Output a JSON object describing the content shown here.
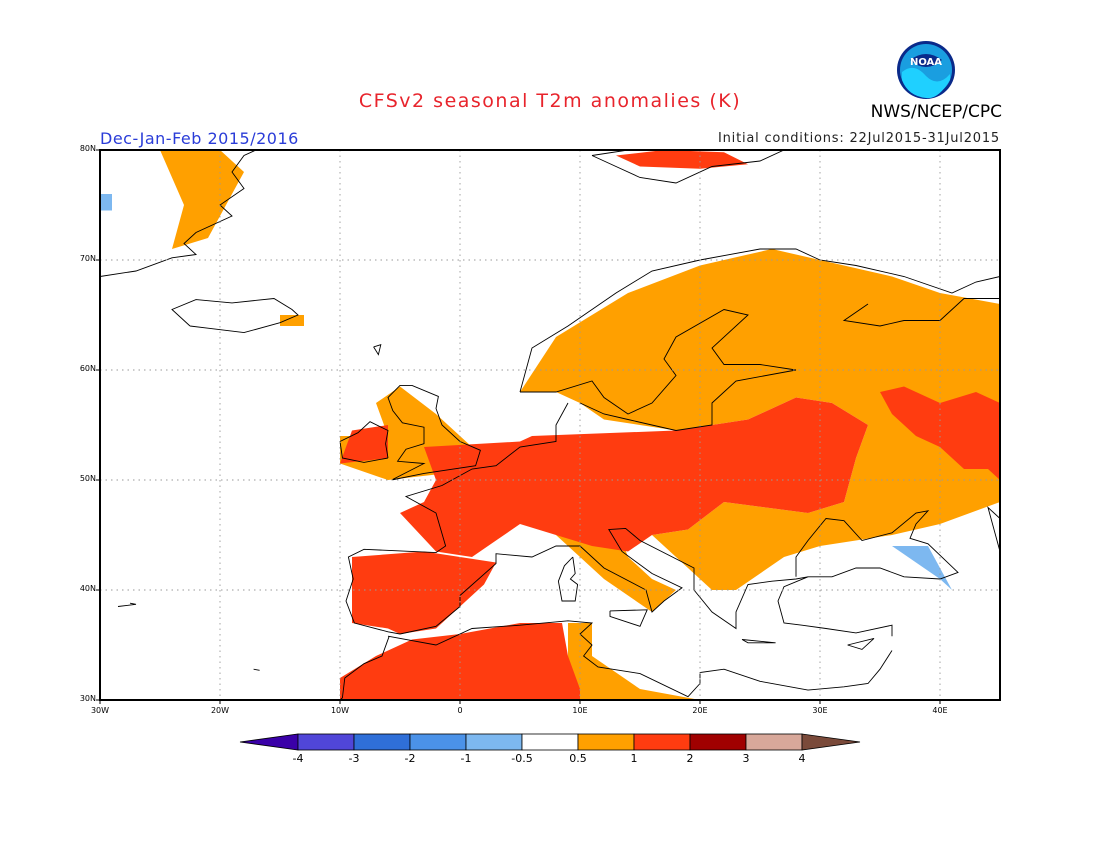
{
  "header": {
    "title": "CFSv2 seasonal T2m anomalies (K)",
    "season": "Dec-Jan-Feb 2015/2016",
    "initial_conditions": "Initial conditions: 22Jul2015-31Jul2015",
    "agency": "NWS/NCEP/CPC",
    "logo_text": "NOAA"
  },
  "map": {
    "projection": "lat-lon",
    "lon_range": [
      -30,
      45
    ],
    "lat_range": [
      30,
      80
    ],
    "grid": "dotted",
    "lat_labels": [
      {
        "value": 80,
        "text": "80N"
      },
      {
        "value": 70,
        "text": "70N"
      },
      {
        "value": 60,
        "text": "60N"
      },
      {
        "value": 50,
        "text": "50N"
      },
      {
        "value": 40,
        "text": "40N"
      },
      {
        "value": 30,
        "text": "30N"
      }
    ],
    "lon_labels": [
      {
        "value": -30,
        "text": "30W"
      },
      {
        "value": -20,
        "text": "20W"
      },
      {
        "value": -10,
        "text": "10W"
      },
      {
        "value": 0,
        "text": "0"
      },
      {
        "value": 10,
        "text": "10E"
      },
      {
        "value": 20,
        "text": "20E"
      },
      {
        "value": 30,
        "text": "30E"
      },
      {
        "value": 40,
        "text": "40E"
      }
    ],
    "anomaly_regions": [
      {
        "name": "western-central-europe",
        "category": "1 to 2",
        "poly": [
          [
            -3,
            53
          ],
          [
            5,
            53.5
          ],
          [
            6,
            54
          ],
          [
            18,
            54.5
          ],
          [
            24,
            55.5
          ],
          [
            28,
            57.5
          ],
          [
            31,
            57
          ],
          [
            34,
            55
          ],
          [
            33,
            52
          ],
          [
            32,
            48
          ],
          [
            29,
            47
          ],
          [
            22,
            48
          ],
          [
            19,
            45.5
          ],
          [
            16,
            45
          ],
          [
            14,
            43.5
          ],
          [
            11,
            44
          ],
          [
            8,
            45
          ],
          [
            5,
            46
          ],
          [
            3,
            44.5
          ],
          [
            1,
            43
          ],
          [
            -2,
            43.5
          ],
          [
            -5,
            47
          ],
          [
            -3,
            48
          ],
          [
            -2,
            50
          ]
        ]
      },
      {
        "name": "iberia",
        "category": "1 to 2",
        "poly": [
          [
            -9,
            43
          ],
          [
            -3,
            43.5
          ],
          [
            3,
            42.5
          ],
          [
            2,
            40.5
          ],
          [
            0,
            38.5
          ],
          [
            -2,
            36.5
          ],
          [
            -5,
            36
          ],
          [
            -6,
            36.5
          ],
          [
            -9,
            37
          ],
          [
            -9,
            41
          ]
        ]
      },
      {
        "name": "north-africa",
        "category": "1 to 2",
        "poly": [
          [
            -10,
            30
          ],
          [
            -10,
            32
          ],
          [
            -7,
            34
          ],
          [
            -4,
            35.5
          ],
          [
            0,
            36
          ],
          [
            5,
            37
          ],
          [
            8.5,
            37
          ],
          [
            9,
            34
          ],
          [
            10,
            31
          ],
          [
            10,
            30
          ]
        ]
      },
      {
        "name": "russia-east",
        "category": "1 to 2",
        "poly": [
          [
            35,
            58
          ],
          [
            37,
            58.5
          ],
          [
            40,
            57
          ],
          [
            43,
            58
          ],
          [
            45,
            57
          ],
          [
            45,
            50
          ],
          [
            44,
            51
          ],
          [
            42,
            51
          ],
          [
            40,
            53
          ],
          [
            38,
            54
          ],
          [
            36,
            56
          ]
        ]
      },
      {
        "name": "svalbard-north",
        "category": "1 to 2",
        "poly": [
          [
            13,
            79.5
          ],
          [
            17,
            80
          ],
          [
            22,
            79.8
          ],
          [
            24,
            78.7
          ],
          [
            20,
            78.3
          ],
          [
            15,
            78.5
          ]
        ]
      },
      {
        "name": "ireland-uk",
        "category": "1 to 2",
        "poly": [
          [
            -10,
            51.5
          ],
          [
            -6,
            52
          ],
          [
            -6,
            55
          ],
          [
            -9,
            54.5
          ]
        ]
      }
    ],
    "moderate_regions": [
      {
        "name": "scandinavia-finland-west-russia",
        "category": "0.5 to 1",
        "poly": [
          [
            5,
            58
          ],
          [
            8,
            63
          ],
          [
            14,
            67
          ],
          [
            20,
            69.5
          ],
          [
            26,
            71
          ],
          [
            30,
            70
          ],
          [
            36,
            68.5
          ],
          [
            40,
            67
          ],
          [
            45,
            66
          ],
          [
            45,
            48
          ],
          [
            40,
            46
          ],
          [
            36,
            45
          ],
          [
            30,
            44
          ],
          [
            27,
            43
          ],
          [
            23,
            40
          ],
          [
            21,
            40
          ],
          [
            19,
            42
          ],
          [
            16,
            45
          ],
          [
            19,
            45.5
          ],
          [
            22,
            48
          ],
          [
            29,
            47
          ],
          [
            32,
            48
          ],
          [
            33,
            52
          ],
          [
            34,
            55
          ],
          [
            31,
            57
          ],
          [
            28,
            57.5
          ],
          [
            24,
            55.5
          ],
          [
            18,
            54.5
          ],
          [
            12,
            55.5
          ],
          [
            10,
            57
          ],
          [
            8,
            58
          ]
        ]
      },
      {
        "name": "british-isles",
        "category": "0.5 to 1",
        "poly": [
          [
            -6,
            50
          ],
          [
            2,
            51
          ],
          [
            1,
            53
          ],
          [
            -2,
            56
          ],
          [
            -5,
            58.5
          ],
          [
            -7,
            57
          ],
          [
            -6,
            54
          ],
          [
            -10,
            54
          ],
          [
            -10,
            51.5
          ]
        ]
      },
      {
        "name": "greenland-east",
        "category": "0.5 to 1",
        "poly": [
          [
            -25,
            80
          ],
          [
            -20,
            80
          ],
          [
            -18,
            78
          ],
          [
            -21,
            72
          ],
          [
            -24,
            71
          ],
          [
            -23,
            75
          ]
        ]
      },
      {
        "name": "italy",
        "category": "0.5 to 1",
        "poly": [
          [
            8,
            45
          ],
          [
            13,
            46
          ],
          [
            14,
            43
          ],
          [
            16,
            41
          ],
          [
            18,
            40
          ],
          [
            16,
            38
          ],
          [
            12,
            41
          ],
          [
            10,
            43
          ]
        ]
      },
      {
        "name": "tunisia-libya",
        "category": "0.5 to 1",
        "poly": [
          [
            9,
            37
          ],
          [
            11,
            37
          ],
          [
            11,
            34
          ],
          [
            15,
            31
          ],
          [
            20,
            30
          ],
          [
            10,
            30
          ],
          [
            9,
            33
          ]
        ]
      },
      {
        "name": "iceland-east",
        "category": "0.5 to 1",
        "poly": [
          [
            -15,
            65
          ],
          [
            -13,
            65
          ],
          [
            -13,
            64
          ],
          [
            -15,
            64
          ]
        ]
      }
    ],
    "cool_regions": [
      {
        "name": "svalbard-west",
        "category": "-1 to -0.5",
        "poly": [
          [
            -30,
            76
          ],
          [
            -29,
            76
          ],
          [
            -29,
            74.5
          ],
          [
            -30,
            74.5
          ]
        ]
      },
      {
        "name": "caucasus",
        "category": "-1 to -0.5",
        "poly": [
          [
            36,
            44
          ],
          [
            39,
            44
          ],
          [
            40,
            42
          ],
          [
            41,
            40
          ],
          [
            40,
            41
          ]
        ]
      }
    ]
  },
  "colorbar": {
    "labels": [
      "-4",
      "-3",
      "-2",
      "-1",
      "-0.5",
      "0.5",
      "1",
      "2",
      "3",
      "4"
    ],
    "colors": [
      "#3a00a8",
      "#5046d8",
      "#2f6fd8",
      "#4b92e8",
      "#7db8f0",
      "#ffffff",
      "#ffa000",
      "#ff3c10",
      "#a00000",
      "#d8a89a",
      "#7a4a3a"
    ]
  }
}
